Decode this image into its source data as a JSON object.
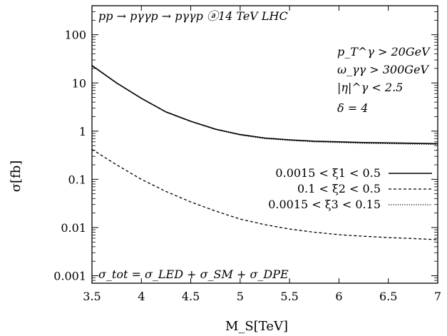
{
  "chart_data": {
    "type": "line",
    "title": "",
    "xlabel": "M_S[TeV]",
    "ylabel": "σ[fb]",
    "xlim": [
      3.5,
      7
    ],
    "ylim": [
      0.0007,
      400
    ],
    "yscale": "log",
    "grid": false,
    "x_ticks": [
      "3.5",
      "4",
      "4.5",
      "5",
      "5.5",
      "6",
      "6.5",
      "7"
    ],
    "y_ticks": [
      "0.001",
      "0.01",
      "0.1",
      "1",
      "10",
      "100"
    ],
    "legend_position": "center-right",
    "annotations": {
      "process": "pp → pγγp → pγγp ⓐ14 TeV LHC",
      "cuts": [
        "p_T^γ > 20GeV",
        "ω_γγ > 300GeV",
        "|η|^γ < 2.5",
        "δ = 4"
      ],
      "formula": "σ_tot = σ_LED + σ_SM + σ_DPE"
    },
    "x": [
      3.5,
      3.75,
      4.0,
      4.25,
      4.5,
      4.75,
      5.0,
      5.25,
      5.5,
      5.75,
      6.0,
      6.25,
      6.5,
      6.75,
      7.0
    ],
    "series": [
      {
        "name": "0.0015 < ξ1 < 0.5",
        "style": "solid",
        "values": [
          23,
          10,
          4.8,
          2.5,
          1.6,
          1.1,
          0.85,
          0.72,
          0.66,
          0.62,
          0.6,
          0.58,
          0.57,
          0.56,
          0.55
        ]
      },
      {
        "name": "0.1 < ξ2 < 0.5",
        "style": "dashed",
        "values": [
          0.42,
          0.2,
          0.1,
          0.056,
          0.034,
          0.022,
          0.015,
          0.0115,
          0.0093,
          0.008,
          0.0071,
          0.0066,
          0.0062,
          0.0059,
          0.0056
        ]
      },
      {
        "name": "0.0015 < ξ3 < 0.15",
        "style": "dotted",
        "values": [
          22.8,
          9.9,
          4.75,
          2.47,
          1.58,
          1.08,
          0.83,
          0.7,
          0.64,
          0.6,
          0.58,
          0.56,
          0.55,
          0.54,
          0.53
        ]
      }
    ]
  }
}
